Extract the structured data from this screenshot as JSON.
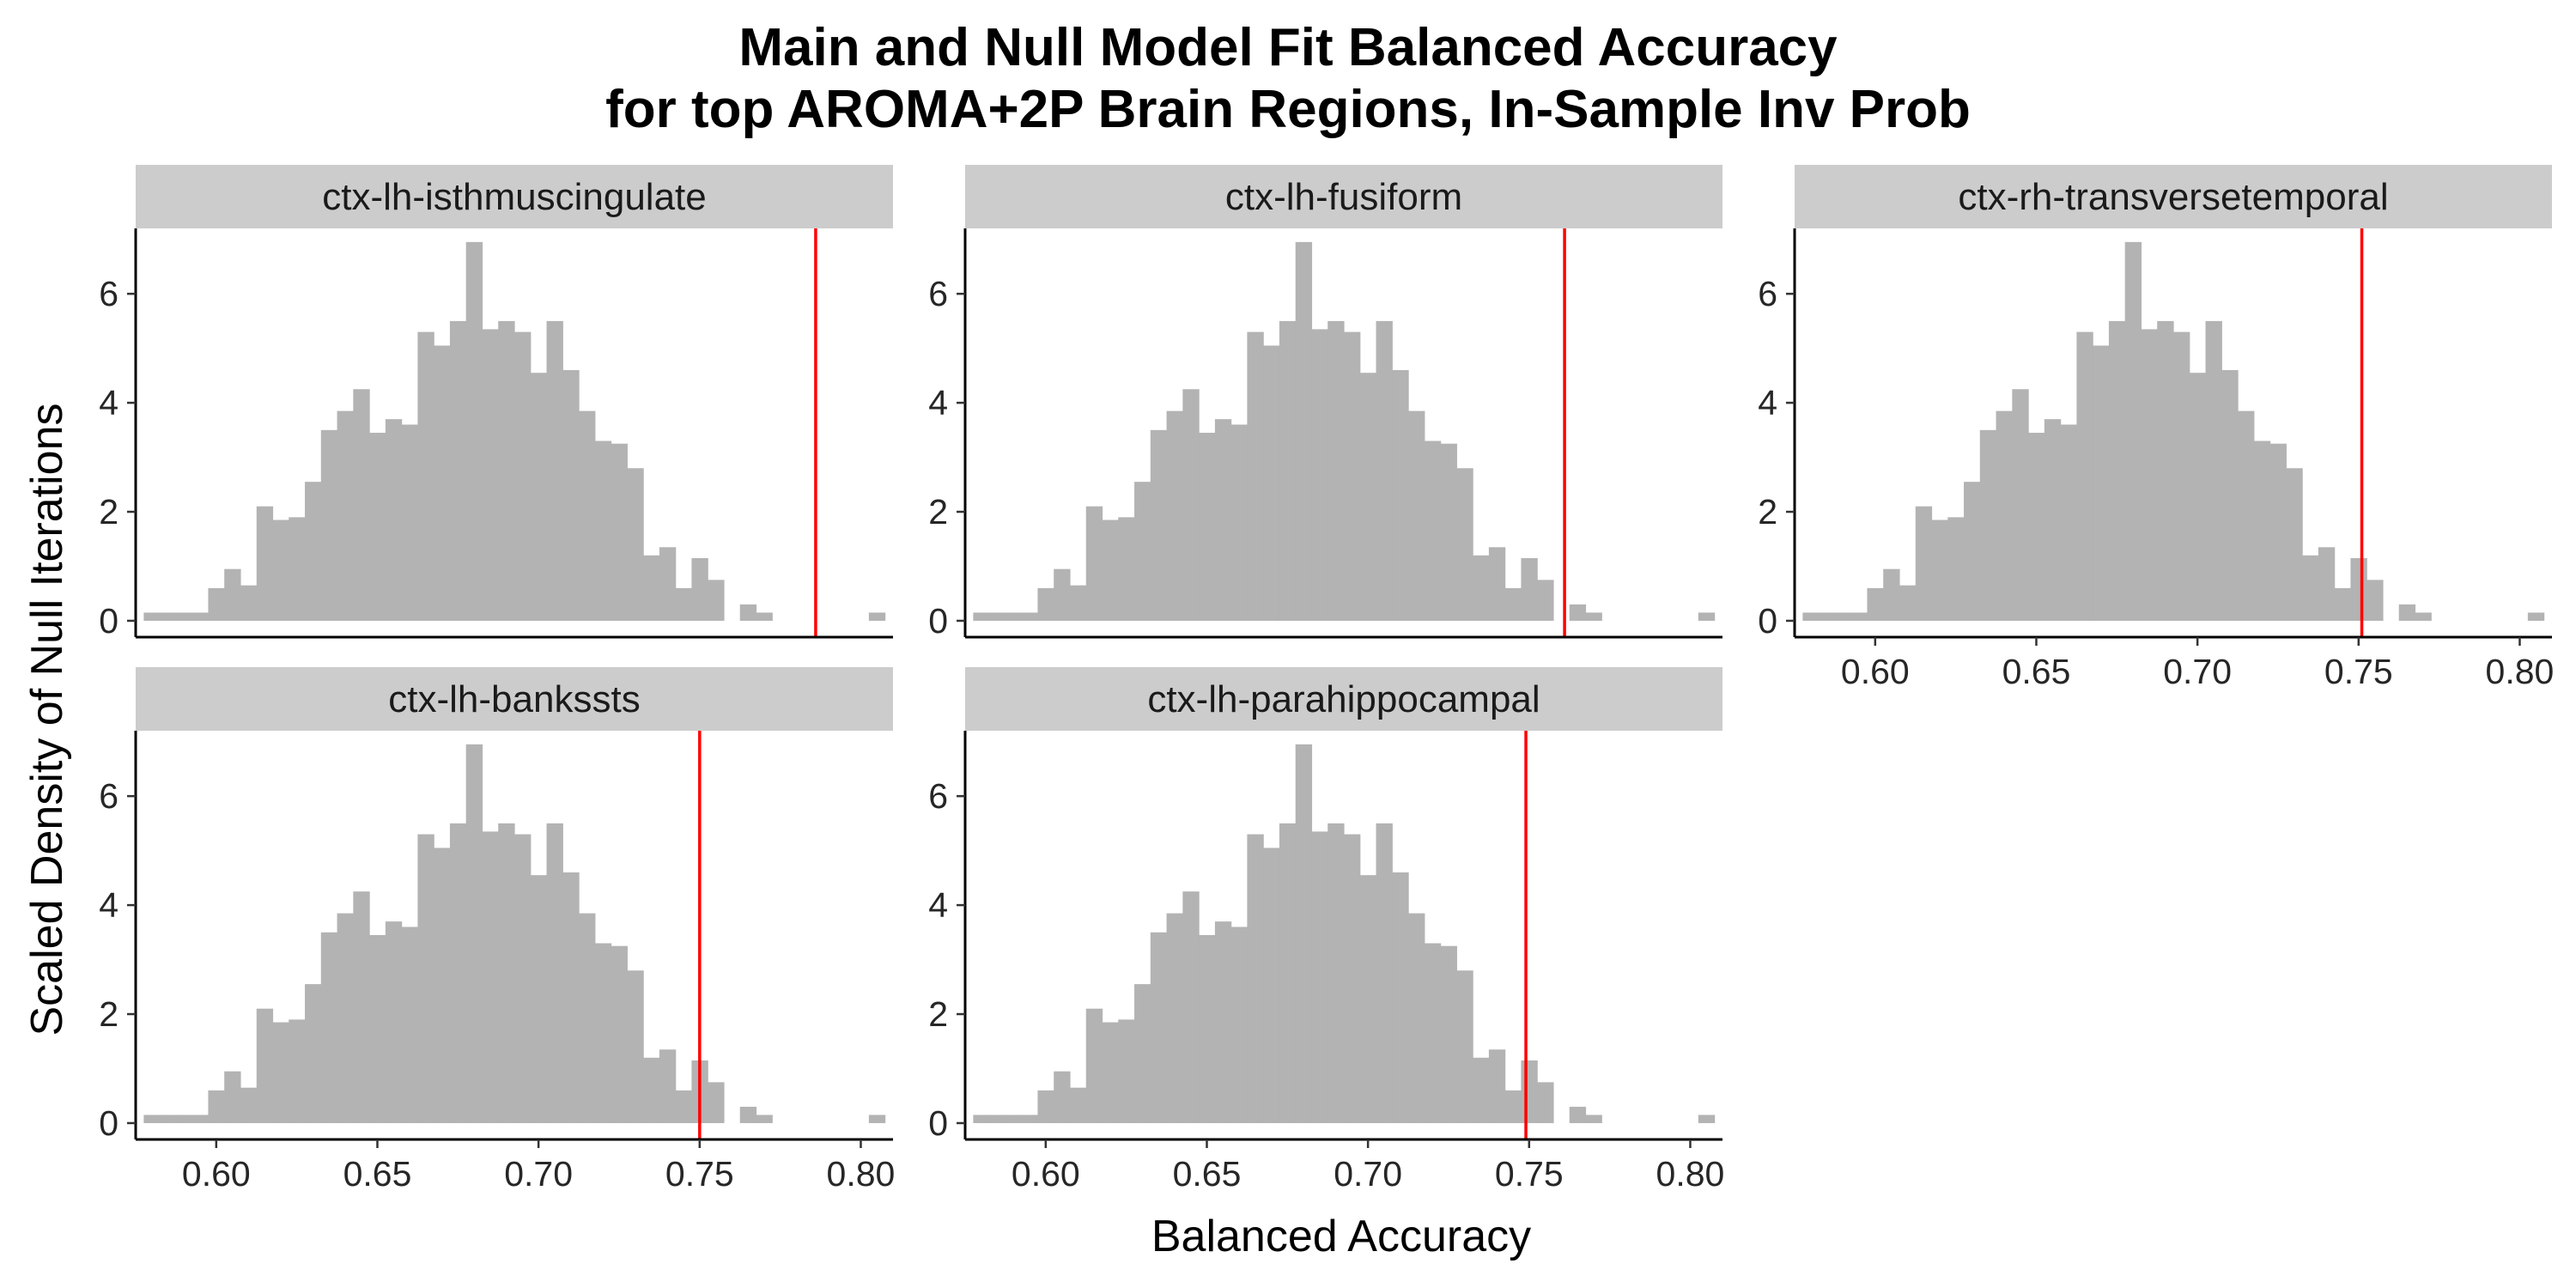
{
  "chart_data": {
    "type": "histogram-facets",
    "title_line1": "Main and Null Model Fit Balanced Accuracy",
    "title_line2": "for top AROMA+2P Brain Regions, In-Sample Inv Prob",
    "xlabel": "Balanced Accuracy",
    "ylabel": "Scaled Density of Null Iterations",
    "xlim": [
      0.575,
      0.81
    ],
    "ylim": [
      -0.3,
      7.2
    ],
    "x_ticks": [
      "0.60",
      "0.65",
      "0.70",
      "0.75",
      "0.80"
    ],
    "y_ticks": [
      "0",
      "2",
      "4",
      "6"
    ],
    "x_tick_values": [
      0.6,
      0.65,
      0.7,
      0.75,
      0.8
    ],
    "y_tick_values": [
      0,
      2,
      4,
      6
    ],
    "bin_width": 0.005,
    "bin_starts": [
      0.5775,
      0.5825,
      0.5875,
      0.5925,
      0.5975,
      0.6025,
      0.6075,
      0.6125,
      0.6175,
      0.6225,
      0.6275,
      0.6325,
      0.6375,
      0.6425,
      0.6475,
      0.6525,
      0.6575,
      0.6625,
      0.6675,
      0.6725,
      0.6775,
      0.6825,
      0.6875,
      0.6925,
      0.6975,
      0.7025,
      0.7075,
      0.7125,
      0.7175,
      0.7225,
      0.7275,
      0.7325,
      0.7375,
      0.7425,
      0.7475,
      0.7525,
      0.7575,
      0.7625,
      0.7675,
      0.7725,
      0.7775,
      0.7825,
      0.7875,
      0.7925,
      0.7975,
      0.8025
    ],
    "null_density": [
      0.15,
      0.15,
      0.15,
      0.15,
      0.6,
      0.95,
      0.65,
      2.1,
      1.85,
      1.9,
      2.55,
      3.5,
      3.85,
      4.25,
      3.45,
      3.7,
      3.6,
      5.3,
      5.05,
      5.5,
      6.95,
      5.35,
      5.5,
      5.3,
      4.55,
      5.5,
      4.6,
      3.85,
      3.3,
      3.25,
      2.8,
      1.2,
      1.35,
      0.6,
      1.15,
      0.75,
      0.0,
      0.3,
      0.15,
      0.0,
      0.0,
      0.0,
      0.0,
      0.0,
      0.0,
      0.15
    ],
    "bar_color": "#b3b3b3",
    "line_color": "#ff0000",
    "strip_color": "#cccccc",
    "panels": [
      {
        "label": "ctx-lh-isthmuscingulate",
        "main_value": 0.786
      },
      {
        "label": "ctx-lh-fusiform",
        "main_value": 0.761
      },
      {
        "label": "ctx-rh-transversetemporal",
        "main_value": 0.751
      },
      {
        "label": "ctx-lh-bankssts",
        "main_value": 0.75
      },
      {
        "label": "ctx-lh-parahippocampal",
        "main_value": 0.749
      }
    ]
  }
}
